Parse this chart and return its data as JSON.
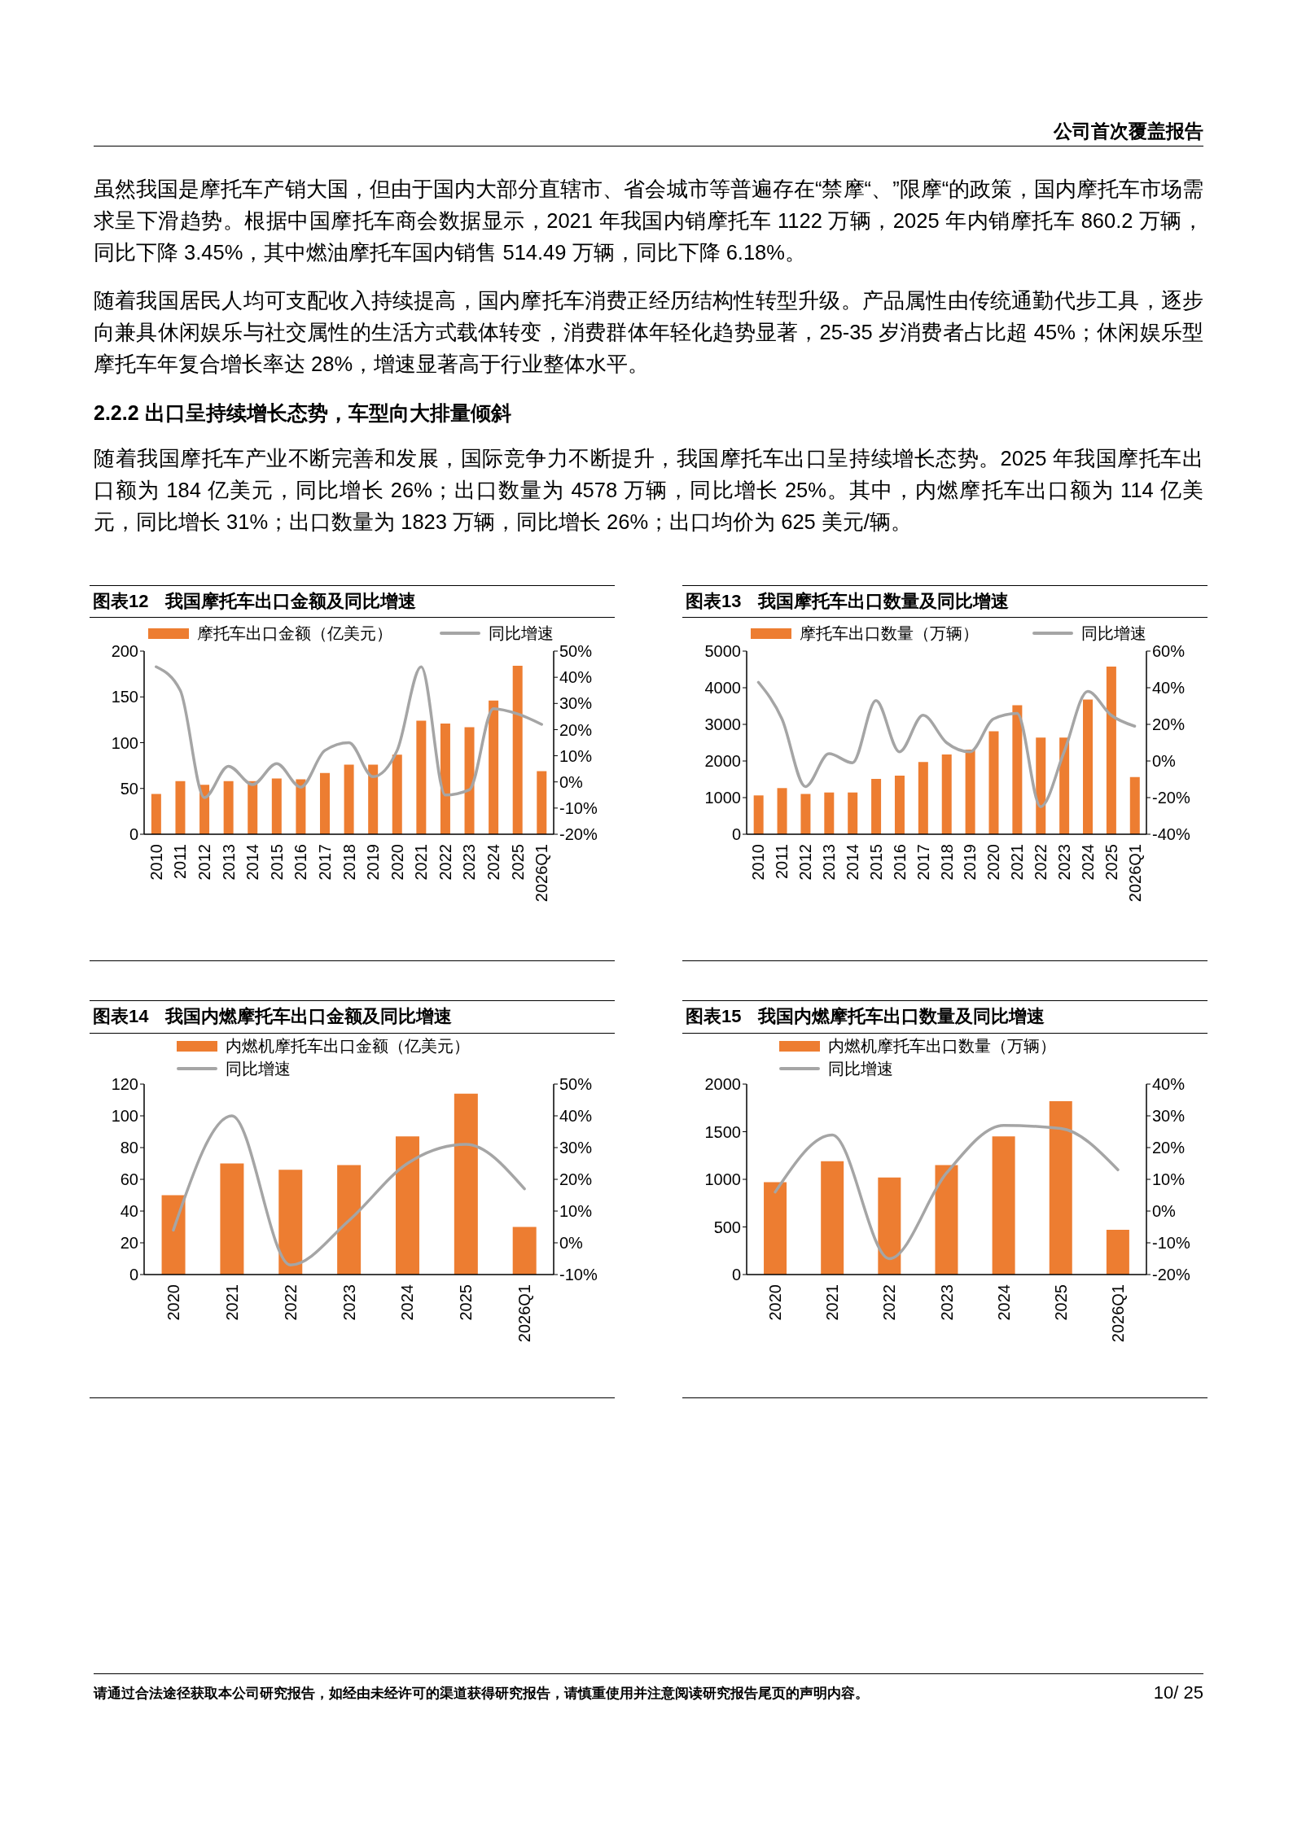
{
  "chart_data": [
    {
      "type": "other",
      "annotations": [
        "公司首次覆盖报告"
      ]
    },
    {
      "type": "other",
      "annotations": [
        "虽然我国是摩托车产销大国，但由于国内大部分直辖市、省会城市等普遍存在“禁摩“、”限摩“的政策，国内摩托车市场需求呈下滑趋势。根据中国摩托车商会数据显示，2021 年我国内销摩托车 1122 万辆，2025 年内销摩托车 860.2 万辆，同比下降 3.45%，其中燃油摩托车国内销售 514.49 万辆，同比下降 6.18%。",
        "随着我国居民人均可支配收入持续提高，国内摩托车消费正经历结构性转型升级。产品属性由传统通勤代步工具，逐步向兼具休闲娱乐与社交属性的生活方式载体转变，消费群体年轻化趋势显著，25-35 岁消费者占比超 45%；休闲娱乐型摩托车年复合增长率达 28%，增速显著高于行业整体水平。"
      ]
    },
    {
      "type": "other",
      "title": "2.2.2 出口呈持续增长态势，车型向大排量倾斜",
      "annotations": [
        "随着我国摩托车产业不断完善和发展，国际竞争力不断提升，我国摩托车出口呈持续增长态势。2025 年我国摩托车出口额为 184 亿美元，同比增长 26%；出口数量为 4578 万辆，同比增长 25%。其中，内燃摩托车出口额为 114 亿美元，同比增长 31%；出口数量为 1823 万辆，同比增长 26%；出口均价为 625 美元/辆。"
      ]
    },
    {
      "type": "bar",
      "title": "图表12 我国摩托车出口金额及同比增速",
      "categories": [
        "2010",
        "2011",
        "2012",
        "2013",
        "2014",
        "2015",
        "2016",
        "2017",
        "2018",
        "2019",
        "2020",
        "2021",
        "2022",
        "2023",
        "2024",
        "2025",
        "2026Q1"
      ],
      "series": [
        {
          "name": "摩托车出口金额（亿美元）",
          "type": "bar",
          "color": "#ed7d31",
          "values": [
            44,
            58,
            54,
            58,
            58,
            61,
            60,
            67,
            76,
            76,
            87,
            124,
            121,
            117,
            146,
            184,
            69
          ]
        },
        {
          "name": "同比增速",
          "type": "line",
          "axis": "y2",
          "color": "#a5a5a5",
          "values": [
            44,
            35,
            -6,
            6,
            -1,
            7,
            -2,
            12,
            15,
            2,
            12,
            44,
            -5,
            -3,
            28,
            26,
            22
          ]
        }
      ],
      "ylim": [
        0,
        200
      ],
      "yticks": [
        0,
        50,
        100,
        150,
        200
      ],
      "y2lim": [
        -20,
        50
      ],
      "y2ticks": [
        {
          "value": -20,
          "label": "-20%"
        },
        {
          "value": -10,
          "label": "-10%"
        },
        {
          "value": 0,
          "label": "0%"
        },
        {
          "value": 10,
          "label": "10%"
        },
        {
          "value": 20,
          "label": "20%"
        },
        {
          "value": 30,
          "label": "30%"
        },
        {
          "value": 40,
          "label": "40%"
        },
        {
          "value": 50,
          "label": "50%"
        }
      ],
      "legend": "top"
    },
    {
      "type": "bar",
      "title": "图表13 我国摩托车出口数量及同比增速",
      "categories": [
        "2010",
        "2011",
        "2012",
        "2013",
        "2014",
        "2015",
        "2016",
        "2017",
        "2018",
        "2019",
        "2020",
        "2021",
        "2022",
        "2023",
        "2024",
        "2025",
        "2026Q1"
      ],
      "series": [
        {
          "name": "摩托车出口数量（万辆）",
          "type": "bar",
          "color": "#ed7d31",
          "values": [
            1060,
            1260,
            1100,
            1140,
            1140,
            1510,
            1600,
            1970,
            2180,
            2310,
            2810,
            3520,
            2640,
            2640,
            3680,
            4580,
            1560
          ]
        },
        {
          "name": "同比增速",
          "type": "line",
          "axis": "y2",
          "color": "#a5a5a5",
          "values": [
            43,
            23,
            -14,
            4,
            -1,
            33,
            5,
            25,
            10,
            5,
            23,
            26,
            -25,
            5,
            38,
            25,
            19
          ]
        }
      ],
      "ylim": [
        0,
        5000
      ],
      "yticks": [
        0,
        1000,
        2000,
        3000,
        4000,
        5000
      ],
      "y2lim": [
        -40,
        60
      ],
      "y2ticks": [
        {
          "value": -40,
          "label": "-40%"
        },
        {
          "value": -20,
          "label": "-20%"
        },
        {
          "value": 0,
          "label": "0%"
        },
        {
          "value": 20,
          "label": "20%"
        },
        {
          "value": 40,
          "label": "40%"
        },
        {
          "value": 60,
          "label": "60%"
        }
      ],
      "legend": "top"
    },
    {
      "type": "bar",
      "title": "图表14 我国内燃摩托车出口金额及同比增速",
      "categories": [
        "2020",
        "2021",
        "2022",
        "2023",
        "2024",
        "2025",
        "2026Q1"
      ],
      "series": [
        {
          "name": "内燃机摩托车出口金额（亿美元）",
          "type": "bar",
          "color": "#ed7d31",
          "values": [
            50,
            70,
            66,
            69,
            87,
            114,
            30
          ]
        },
        {
          "name": "同比增速",
          "type": "line",
          "axis": "y2",
          "color": "#a5a5a5",
          "values": [
            4,
            40,
            -7,
            7,
            25,
            31,
            17
          ]
        }
      ],
      "ylim": [
        0,
        120
      ],
      "yticks": [
        0,
        20,
        40,
        60,
        80,
        100,
        120
      ],
      "y2lim": [
        -10,
        50
      ],
      "y2ticks": [
        {
          "value": -10,
          "label": "-10%"
        },
        {
          "value": 0,
          "label": "0%"
        },
        {
          "value": 10,
          "label": "10%"
        },
        {
          "value": 20,
          "label": "20%"
        },
        {
          "value": 30,
          "label": "30%"
        },
        {
          "value": 40,
          "label": "40%"
        },
        {
          "value": 50,
          "label": "50%"
        }
      ],
      "legend": "top left"
    },
    {
      "type": "bar",
      "title": "图表15 我国内燃摩托车出口数量及同比增速",
      "categories": [
        "2020",
        "2021",
        "2022",
        "2023",
        "2024",
        "2025",
        "2026Q1"
      ],
      "series": [
        {
          "name": "内燃机摩托车出口数量（万辆）",
          "type": "bar",
          "color": "#ed7d31",
          "values": [
            970,
            1190,
            1020,
            1150,
            1450,
            1820,
            470
          ]
        },
        {
          "name": "同比增速",
          "type": "line",
          "axis": "y2",
          "color": "#a5a5a5",
          "values": [
            6,
            24,
            -15,
            12,
            27,
            26,
            13
          ]
        }
      ],
      "ylim": [
        0,
        2000
      ],
      "yticks": [
        0,
        500,
        1000,
        1500,
        2000
      ],
      "y2lim": [
        -20,
        40
      ],
      "y2ticks": [
        {
          "value": -20,
          "label": "-20%"
        },
        {
          "value": -10,
          "label": "-10%"
        },
        {
          "value": 0,
          "label": "0%"
        },
        {
          "value": 10,
          "label": "10%"
        },
        {
          "value": 20,
          "label": "20%"
        },
        {
          "value": 30,
          "label": "30%"
        },
        {
          "value": 40,
          "label": "40%"
        }
      ],
      "legend": "top left"
    },
    {
      "type": "other",
      "annotations": [
        "请通过合法途径获取本公司研究报告，如经由未经许可的渠道获得研究报告，请慎重使用并注意阅读研究报告尾页的声明内容。",
        "10/ 25"
      ]
    }
  ]
}
